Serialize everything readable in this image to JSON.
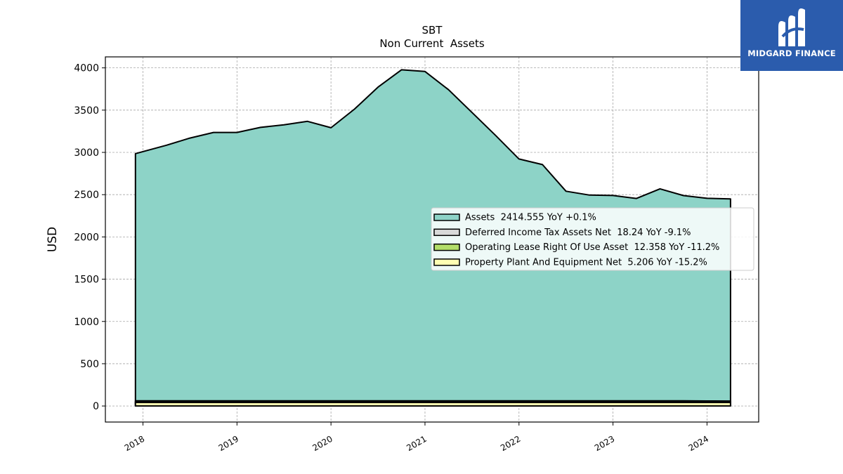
{
  "brand": {
    "name": "MIDGARD FINANCE",
    "background": "#2b5cad"
  },
  "chart_data": {
    "type": "area",
    "title": "SBT",
    "subtitle": "Non Current  Assets",
    "xlabel": "",
    "ylabel": "USD",
    "xlim": [
      2017.6,
      2024.55
    ],
    "ylim": [
      -190,
      4130
    ],
    "yticks": [
      0,
      500,
      1000,
      1500,
      2000,
      2500,
      3000,
      3500,
      4000
    ],
    "xticks": [
      "2018",
      "2019",
      "2020",
      "2021",
      "2022",
      "2023",
      "2024"
    ],
    "grid": true,
    "legend_position": "center-right",
    "x": [
      2017.92,
      2018.25,
      2018.5,
      2018.75,
      2019.0,
      2019.25,
      2019.5,
      2019.75,
      2020.0,
      2020.25,
      2020.5,
      2020.75,
      2021.0,
      2021.25,
      2021.5,
      2021.75,
      2022.0,
      2022.25,
      2022.5,
      2022.75,
      2023.0,
      2023.25,
      2023.5,
      2023.75,
      2024.0,
      2024.25
    ],
    "series": [
      {
        "name": "Assets  2414.555 YoY +0.1%",
        "color": "#8dd3c7",
        "values": [
          2945,
          3045,
          3130,
          3195,
          3195,
          3255,
          3285,
          3325,
          3250,
          3470,
          3730,
          3935,
          3915,
          3700,
          3430,
          3160,
          2880,
          2815,
          2500,
          2455,
          2450,
          2415,
          2530,
          2450,
          2420,
          2415
        ]
      },
      {
        "name": "Deferred Income Tax Assets Net  18.24 YoY -9.1%",
        "color": "#d9d9d9",
        "values": [
          20,
          20,
          20,
          21,
          21,
          21,
          21,
          22,
          22,
          22,
          22,
          22,
          22,
          22,
          22,
          22,
          22,
          21,
          21,
          20,
          20,
          20,
          20,
          20,
          19,
          18
        ]
      },
      {
        "name": "Operating Lease Right Of Use Asset  12.358 YoY -11.2%",
        "color": "#b3de69",
        "values": [
          14,
          14,
          14,
          14,
          14,
          14,
          14,
          14,
          14,
          14,
          14,
          14,
          14,
          14,
          14,
          14,
          14,
          14,
          14,
          14,
          14,
          14,
          13,
          13,
          13,
          12
        ]
      },
      {
        "name": "Property Plant And Equipment Net  5.206 YoY -15.2%",
        "color": "#ffffb3",
        "values": [
          6,
          6,
          6,
          6,
          6,
          6,
          6,
          6,
          6,
          6,
          6,
          6,
          6,
          6,
          6,
          6,
          6,
          6,
          6,
          6,
          6,
          6,
          6,
          6,
          5,
          5
        ]
      }
    ]
  }
}
